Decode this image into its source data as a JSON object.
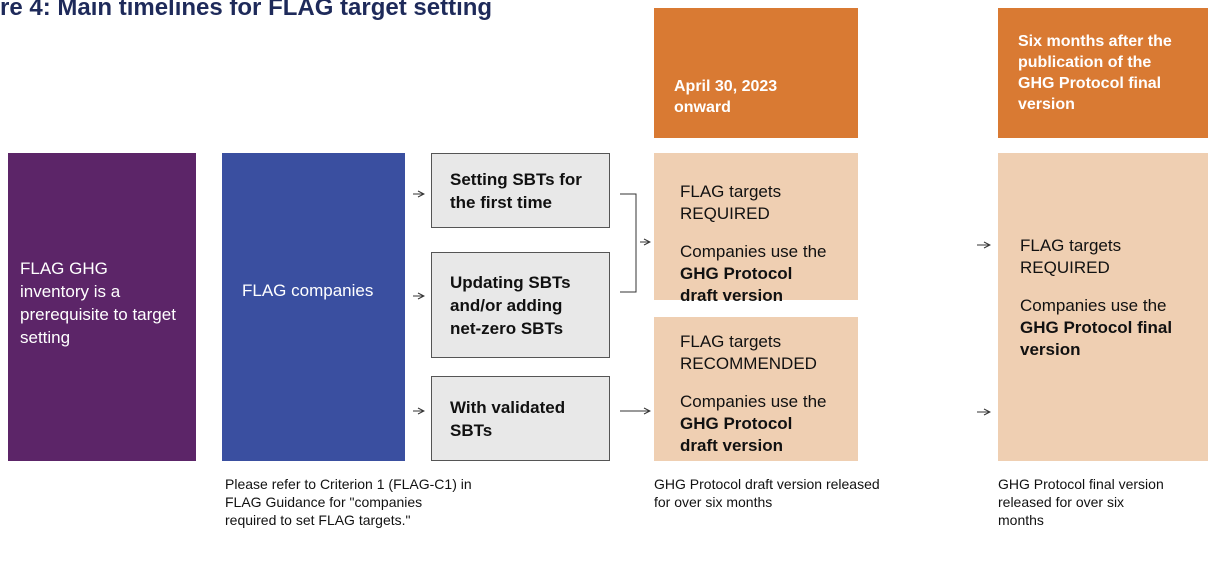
{
  "title": "re 4: Main timelines for FLAG target setting",
  "prerequisite": "FLAG GHG inventory is a prerequisite to target setting",
  "companies": "FLAG companies",
  "cases": [
    "Setting SBTs for the first time",
    "Updating SBTs and/or adding net-zero SBTs",
    "With validated SBTs"
  ],
  "headers": [
    "April 30, 2023 onward",
    "Six months after the publication of the GHG Protocol final version"
  ],
  "phase1": {
    "required": {
      "status": "FLAG targets REQUIRED",
      "use": "Companies use the",
      "version": "GHG Protocol draft version"
    },
    "recommended": {
      "status": "FLAG targets RECOMMENDED",
      "use": "Companies use the",
      "version": "GHG Protocol draft version"
    }
  },
  "phase2": {
    "status": "FLAG targets REQUIRED",
    "use": "Companies use the",
    "version": "GHG Protocol final version"
  },
  "notes": [
    "Please refer to Criterion 1 (FLAG-C1) in FLAG Guidance for \"companies required to set FLAG targets.\"",
    "GHG Protocol draft version released for over six months",
    "GHG Protocol final version released for over six months"
  ]
}
